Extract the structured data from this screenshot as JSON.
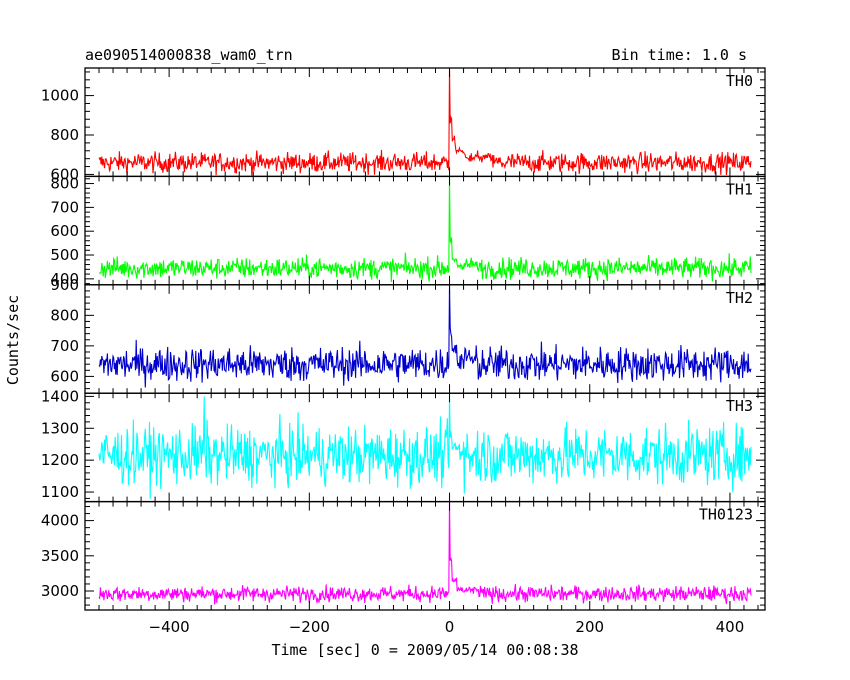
{
  "chart_data": {
    "type": "line",
    "title": "ae090514000838_wam0_trn",
    "bin_time": "Bin time: 1.0 s",
    "xlabel": "Time [sec] 0 = 2009/05/14 00:08:38",
    "ylabel": "Counts/sec",
    "x_range": [
      -500,
      430
    ],
    "xlim": [
      -520,
      450
    ],
    "xticks": [
      -400,
      -200,
      0,
      200,
      400
    ],
    "panels": [
      {
        "name": "TH0",
        "color": "#ff0000",
        "ylim": [
          590,
          1140
        ],
        "yticks": [
          600,
          800,
          1000
        ],
        "baseline": 660,
        "noise": 25,
        "peak": 1140,
        "peak_x": 0,
        "tail": [
          {
            "x": 3,
            "v": 870
          },
          {
            "x": 8,
            "v": 780
          },
          {
            "x": 20,
            "v": 720
          },
          {
            "x": 60,
            "v": 680
          }
        ]
      },
      {
        "name": "TH1",
        "color": "#00ff00",
        "ylim": [
          375,
          830
        ],
        "yticks": [
          400,
          500,
          600,
          700,
          800
        ],
        "baseline": 445,
        "noise": 22,
        "peak": 830,
        "peak_x": 0,
        "tail": [
          {
            "x": 3,
            "v": 560
          },
          {
            "x": 10,
            "v": 480
          },
          {
            "x": 40,
            "v": 455
          }
        ]
      },
      {
        "name": "TH2",
        "color": "#0000cc",
        "ylim": [
          545,
          900
        ],
        "yticks": [
          600,
          700,
          800,
          900
        ],
        "baseline": 640,
        "noise": 28,
        "peak": 900,
        "peak_x": 0,
        "tail": [
          {
            "x": 3,
            "v": 740
          },
          {
            "x": 10,
            "v": 690
          },
          {
            "x": 40,
            "v": 650
          }
        ]
      },
      {
        "name": "TH3",
        "color": "#00ffff",
        "ylim": [
          1070,
          1410
        ],
        "yticks": [
          1100,
          1200,
          1300,
          1400
        ],
        "baseline": 1215,
        "noise": 45,
        "peak": 1400,
        "peak_x": 0,
        "tail": [
          {
            "x": 3,
            "v": 1260
          },
          {
            "x": 20,
            "v": 1230
          }
        ],
        "extra_spike": {
          "x": -350,
          "v": 1400
        }
      },
      {
        "name": "TH0123",
        "color": "#ff00ff",
        "ylim": [
          2730,
          4270
        ],
        "yticks": [
          3000,
          3500,
          4000
        ],
        "baseline": 2960,
        "noise": 55,
        "peak": 4270,
        "peak_x": 0,
        "tail": [
          {
            "x": 3,
            "v": 3450
          },
          {
            "x": 10,
            "v": 3150
          },
          {
            "x": 40,
            "v": 3000
          }
        ]
      }
    ]
  }
}
